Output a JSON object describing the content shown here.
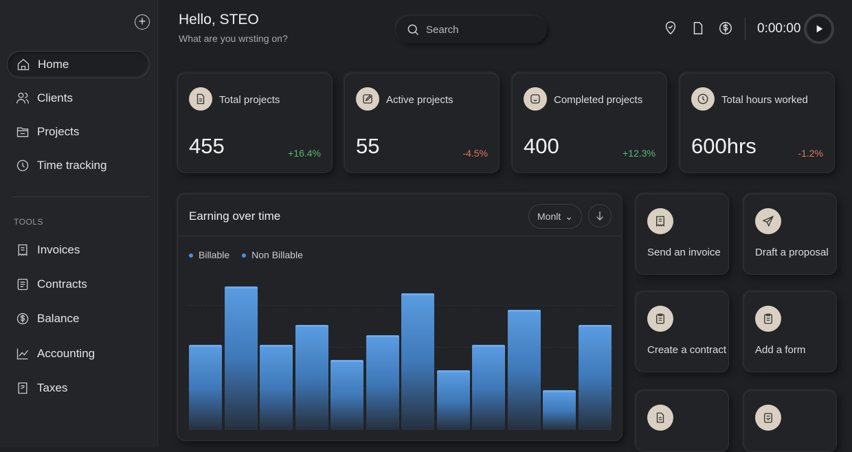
{
  "sidebar": {
    "items": [
      {
        "label": "Home",
        "icon": "home-icon",
        "active": true
      },
      {
        "label": "Clients",
        "icon": "users-icon"
      },
      {
        "label": "Projects",
        "icon": "folder-icon"
      },
      {
        "label": "Time tracking",
        "icon": "clock-icon"
      }
    ],
    "tools_heading": "TOOLS",
    "tools": [
      {
        "label": "Invoices",
        "icon": "receipt-icon"
      },
      {
        "label": "Contracts",
        "icon": "contract-icon"
      },
      {
        "label": "Balance",
        "icon": "dollar-icon"
      },
      {
        "label": "Accounting",
        "icon": "chart-line-icon"
      },
      {
        "label": "Taxes",
        "icon": "tax-icon"
      }
    ]
  },
  "header": {
    "greeting": "Hello, STEO",
    "subtitle": "What are you wrsting on?",
    "search_placeholder": "Search",
    "timer": "0:00:00"
  },
  "stats": [
    {
      "label": "Total projects",
      "value": "455",
      "change": "+16.4%",
      "trend": "positive"
    },
    {
      "label": "Active projects",
      "value": "55",
      "change": "-4.5%",
      "trend": "negative"
    },
    {
      "label": "Completed projects",
      "value": "400",
      "change": "+12.3%",
      "trend": "positive"
    },
    {
      "label": "Total hours worked",
      "value": "600hrs",
      "change": "-1.2%",
      "trend": "negative"
    }
  ],
  "chart": {
    "title": "Earning over time",
    "period": "Monlt",
    "legend": [
      "Billable",
      "Non Billable"
    ]
  },
  "chart_data": {
    "type": "bar",
    "title": "Earning over time",
    "series": [
      {
        "name": "Billable",
        "values": [
          51,
          86,
          51,
          63,
          42,
          57,
          82,
          36,
          51,
          72,
          24,
          63
        ]
      }
    ],
    "color": "#4a90e0",
    "grid": true,
    "ylim": [
      0,
      100
    ]
  },
  "actions": [
    {
      "label": "Send an invoice",
      "icon": "receipt-icon"
    },
    {
      "label": "Draft a proposal",
      "icon": "send-icon"
    },
    {
      "label": "Create a contract",
      "icon": "clipboard-icon"
    },
    {
      "label": "Add a form",
      "icon": "clipboard-icon"
    },
    {
      "label": "",
      "icon": "document-icon"
    },
    {
      "label": "",
      "icon": "form-edit-icon"
    }
  ],
  "colors": {
    "accent": "#4a90e0",
    "positive": "#5fb870",
    "negative": "#d97a5e"
  }
}
